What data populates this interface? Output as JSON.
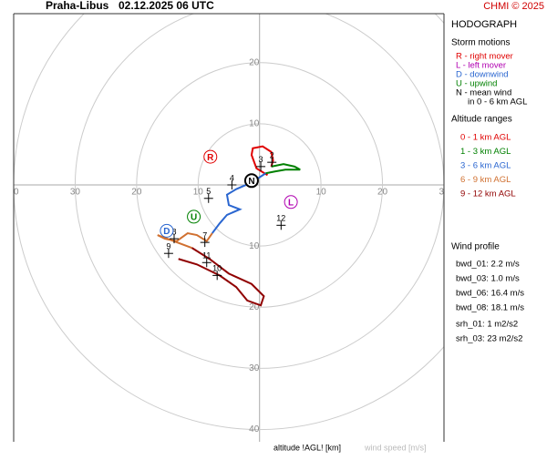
{
  "header": {
    "station": "Praha-Libus",
    "datetime": "02.12.2025 06 UTC",
    "credit": "CHMI © 2025"
  },
  "chart_data": {
    "type": "hodograph",
    "title": "HODOGRAPH",
    "xlim": [
      -40,
      30
    ],
    "ylim": [
      -42,
      28
    ],
    "rticks": [
      10,
      20,
      30,
      40
    ],
    "series": [
      {
        "name": "0 - 1 km AGL",
        "color": "#e00000",
        "u": [
          1.3,
          -0.5,
          -1.3,
          -1.1,
          0.5,
          1.9,
          2.2,
          1.9
        ],
        "v": [
          1.6,
          2.7,
          4.9,
          6.0,
          6.3,
          5.4,
          4.0,
          3.0
        ]
      },
      {
        "name": "1 - 3 km AGL",
        "color": "#008000",
        "u": [
          1.9,
          3.9,
          5.7,
          6.6,
          4.2,
          2.5,
          1.0
        ],
        "v": [
          3.0,
          3.4,
          3.0,
          2.5,
          2.5,
          2.2,
          1.9
        ]
      },
      {
        "name": "3 - 6 km AGL",
        "color": "#2a66d0",
        "u": [
          1.0,
          -1.3,
          -3.8,
          -5.3,
          -5.0,
          -3.2,
          -5.3,
          -6.5,
          -7.7
        ],
        "v": [
          1.9,
          0.4,
          -0.7,
          -1.6,
          -3.3,
          -4.0,
          -4.9,
          -6.3,
          -7.9
        ]
      },
      {
        "name": "6 - 9 km AGL",
        "color": "#d07030",
        "u": [
          -7.7,
          -8.6,
          -10.2,
          -11.7,
          -13.5,
          -15.4,
          -16.6,
          -11.0
        ],
        "v": [
          -7.9,
          -9.2,
          -8.2,
          -7.9,
          -9.2,
          -8.8,
          -8.2,
          -10.3
        ]
      },
      {
        "name": "9 - 12 km AGL",
        "color": "#900000",
        "u": [
          -11.0,
          -8.0,
          -5.0,
          -1.3,
          0.7,
          0.2,
          -2.0,
          -3.8,
          -6.5,
          -10.2,
          -13.2
        ],
        "v": [
          -10.3,
          -12.2,
          -14.5,
          -16.2,
          -18.2,
          -19.7,
          -18.9,
          -16.7,
          -14.8,
          -13.0,
          -12.1
        ]
      }
    ],
    "altitude_markers": [
      {
        "label": "2",
        "u": 2.0,
        "v": 3.7
      },
      {
        "label": "3",
        "u": 0.2,
        "v": 3.0
      },
      {
        "label": "4",
        "u": -4.5,
        "v": 0.0
      },
      {
        "label": "5",
        "u": -8.3,
        "v": -2.2
      },
      {
        "label": "7",
        "u": -8.9,
        "v": -9.4
      },
      {
        "label": "8",
        "u": -13.9,
        "v": -8.8
      },
      {
        "label": "9",
        "u": -14.8,
        "v": -11.2
      },
      {
        "label": "10",
        "u": -6.9,
        "v": -14.8
      },
      {
        "label": "11",
        "u": -8.6,
        "v": -12.7
      },
      {
        "label": "12",
        "u": 3.5,
        "v": -6.6
      }
    ],
    "storm_motions": [
      {
        "symbol": "R",
        "color": "#e00000",
        "u": -8.0,
        "v": 4.6
      },
      {
        "symbol": "L",
        "color": "#b000b0",
        "u": 5.1,
        "v": -2.8
      },
      {
        "symbol": "D",
        "color": "#2a66d0",
        "u": -15.1,
        "v": -7.5
      },
      {
        "symbol": "U",
        "color": "#008000",
        "u": -10.7,
        "v": -5.2
      },
      {
        "symbol": "N",
        "color": "#000000",
        "u": -1.3,
        "v": 0.7
      }
    ],
    "x_label": "altitude !AGL! [km]",
    "speed_label": "wind speed [m/s]"
  },
  "panel": {
    "storm_title": "Storm motions",
    "storm_legend": [
      {
        "text": "R - right mover",
        "color": "#e00000"
      },
      {
        "text": "L - left mover",
        "color": "#b000b0"
      },
      {
        "text": "D - downwind",
        "color": "#2a66d0"
      },
      {
        "text": "U - upwind",
        "color": "#008000"
      },
      {
        "text": "N - mean wind",
        "color": "#000000"
      },
      {
        "text": "in 0 - 6 km AGL",
        "color": "#000000"
      }
    ],
    "altitude_title": "Altitude ranges",
    "wind_title": "Wind profile",
    "wind_lines": [
      "bwd_01: 2.2 m/s",
      "bwd_03: 1.0 m/s",
      "bwd_06: 16.4 m/s",
      "bwd_08: 18.1 m/s",
      "srh_01: 1 m2/s2",
      "srh_03: 23 m2/s2"
    ]
  }
}
